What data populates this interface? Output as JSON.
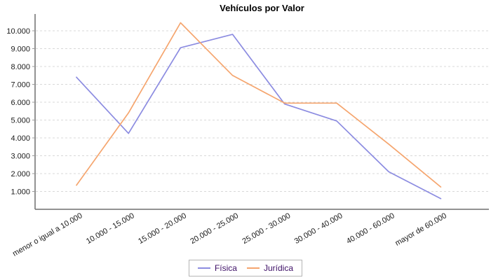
{
  "chart_data": {
    "type": "line",
    "title": "Vehículos por Valor",
    "categories": [
      "menor o igual a 10.000",
      "10.000 - 15.000",
      "15.000 - 20.000",
      "20.000 - 25.000",
      "25.000 - 30.000",
      "30.000 - 40.000",
      "40.000 - 60.000",
      "mayor de 60.000"
    ],
    "series": [
      {
        "name": "Física",
        "color": "#8c8ce1",
        "values": [
          7400,
          4250,
          9050,
          9800,
          5900,
          4950,
          2100,
          600
        ]
      },
      {
        "name": "Jurídica",
        "color": "#f5a56e",
        "values": [
          1350,
          5400,
          10450,
          7500,
          5950,
          5950,
          3650,
          1250
        ]
      }
    ],
    "xlabel": "",
    "ylabel": "",
    "ylim": [
      0,
      11000
    ],
    "y_ticks": [
      {
        "value": 1000,
        "label": "1.000"
      },
      {
        "value": 2000,
        "label": "2.000"
      },
      {
        "value": 3000,
        "label": "3.000"
      },
      {
        "value": 4000,
        "label": "4.000"
      },
      {
        "value": 5000,
        "label": "5.000"
      },
      {
        "value": 6000,
        "label": "6.000"
      },
      {
        "value": 7000,
        "label": "7.000"
      },
      {
        "value": 8000,
        "label": "8.000"
      },
      {
        "value": 9000,
        "label": "9.000"
      },
      {
        "value": 10000,
        "label": "10.000"
      }
    ],
    "grid": "horizontal-dashed",
    "legend_position": "bottom-center"
  },
  "legend": {
    "text_color": "#3d0f66"
  }
}
